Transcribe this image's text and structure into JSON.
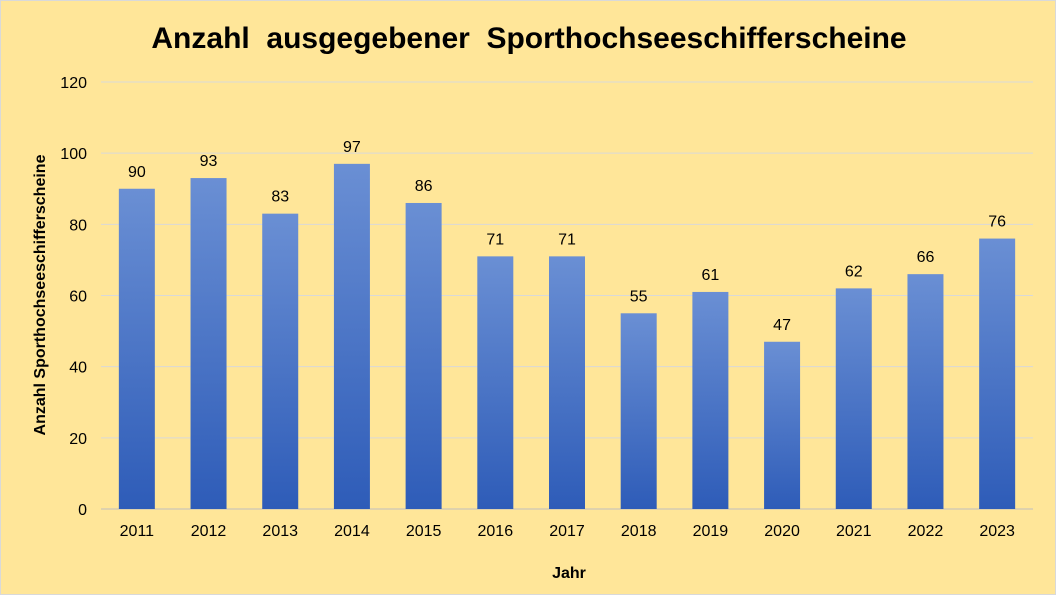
{
  "colors": {
    "background": "#ffe699",
    "bar_top": "#6a8fd4",
    "bar_bottom": "#2e5cb8",
    "gridline": "#d9d9d9"
  },
  "chart_data": {
    "type": "bar",
    "title": "Anzahl  ausgegebener  Sporthochseeschifferscheine",
    "xlabel": "Jahr",
    "ylabel": "Anzahl Sporthochseeschifferscheine",
    "categories": [
      "2011",
      "2012",
      "2013",
      "2014",
      "2015",
      "2016",
      "2017",
      "2018",
      "2019",
      "2020",
      "2021",
      "2022",
      "2023"
    ],
    "values": [
      90,
      93,
      83,
      97,
      86,
      71,
      71,
      55,
      61,
      47,
      62,
      66,
      76
    ],
    "ylim": [
      0,
      120
    ],
    "yticks": [
      0,
      20,
      40,
      60,
      80,
      100,
      120
    ],
    "grid": true,
    "legend": "none",
    "data_labels": true
  }
}
